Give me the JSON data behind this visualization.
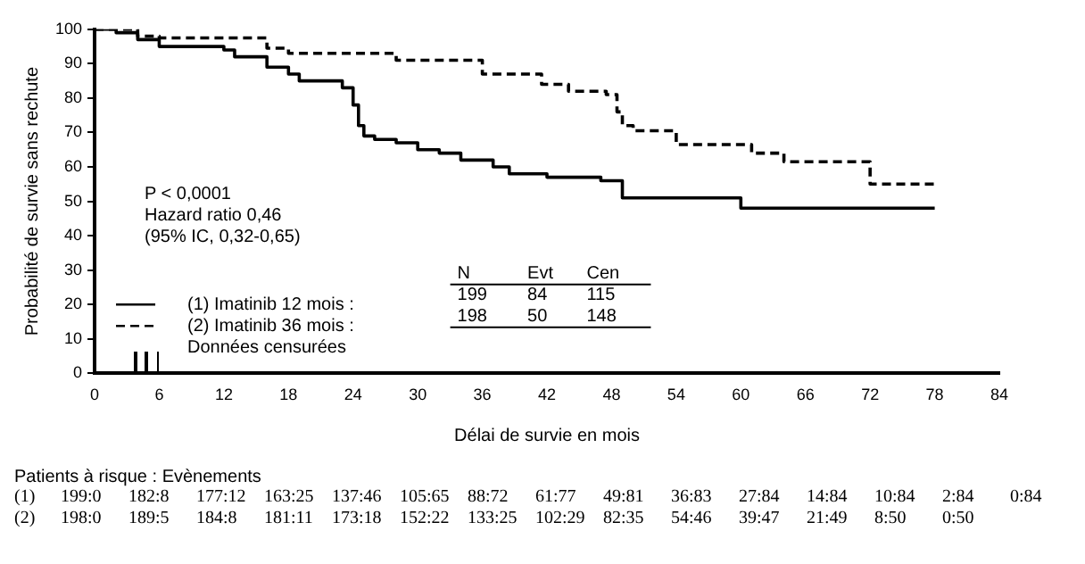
{
  "chart_data": {
    "type": "step",
    "xlabel": "Délai de survie en mois",
    "ylabel": "Probabilité de survie sans rechute",
    "xlim": [
      0,
      84
    ],
    "xticks": [
      0,
      6,
      12,
      18,
      24,
      30,
      36,
      42,
      48,
      54,
      60,
      66,
      72,
      78,
      84
    ],
    "ylim": [
      0,
      100
    ],
    "yticks": [
      0,
      10,
      20,
      30,
      40,
      50,
      60,
      70,
      80,
      90,
      100
    ],
    "grid": false,
    "legend": "bottom left",
    "series": [
      {
        "name": "(1) Imatinib 12 mois :",
        "color": "#000000",
        "line_style": "solid",
        "x": [
          0,
          2,
          4,
          6,
          12,
          13,
          16,
          18,
          19,
          23,
          24,
          24.5,
          25,
          26,
          28,
          30,
          32,
          34,
          37,
          38.5,
          42,
          47,
          49,
          60,
          78
        ],
        "values": [
          100,
          99,
          97,
          95,
          94,
          92,
          89,
          87,
          85,
          83,
          78,
          72,
          69,
          68,
          67,
          65,
          64,
          62,
          60,
          58,
          57,
          56,
          51,
          48,
          48
        ]
      },
      {
        "name": "(2) Imatinib 36 mois :",
        "color": "#000000",
        "line_style": "dashed",
        "x": [
          0,
          4,
          6,
          16,
          18,
          28,
          36,
          41.5,
          44,
          47.5,
          48.5,
          49,
          50,
          54,
          61,
          64,
          72,
          78
        ],
        "values": [
          100,
          98,
          97.5,
          94.5,
          93,
          91,
          87,
          84,
          82,
          81,
          76,
          72,
          70.5,
          66.5,
          64,
          61.5,
          55,
          55
        ]
      }
    ],
    "annotations": [
      "P < 0,0001",
      "Hazard ratio 0,46",
      "(95% IC, 0,32-0,65)",
      "Données censurées",
      "N",
      "Evt",
      "Cen",
      "199",
      "84",
      "115",
      "198",
      "50",
      "148",
      "Patients à risque : Evènements",
      "(1) 199:0 182:8 177:12 163:25 137:46 105:65 88:72 61:77 49:81 36:83 27:84 14:84 10:84 2:84 0:84",
      "(2) 198:0 189:5 184:8 181:11 173:18 152:22 133:25 102:29 82:35 54:46 39:47 21:49 8:50 0:50"
    ]
  }
}
